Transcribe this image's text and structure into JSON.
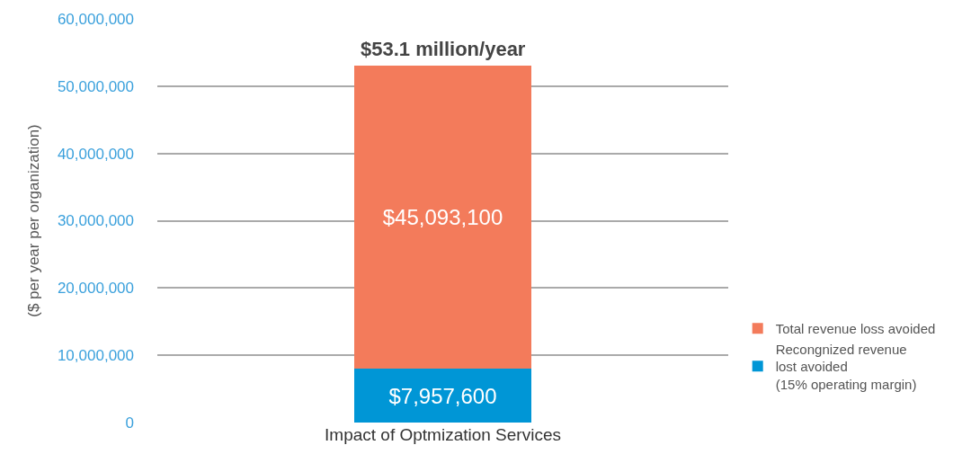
{
  "chart_data": {
    "type": "bar",
    "ylabel": "($ per year per organization)",
    "categories": [
      "Impact of Optmization Services"
    ],
    "stacked": true,
    "series": [
      {
        "name": "Recongnized revenue\nlost avoided\n(15% operating margin)",
        "color": "#0096d6",
        "values": [
          7957600
        ],
        "value_labels": [
          "$7,957,600"
        ]
      },
      {
        "name": "Total revenue loss avoided",
        "color": "#f37b5b",
        "values": [
          45093100
        ],
        "value_labels": [
          "$45,093,100"
        ]
      }
    ],
    "totals": [
      "$53.1 million/year"
    ],
    "ylim": [
      0,
      60000000
    ],
    "yticks": [
      0,
      {
        "value": 10000000,
        "label": "10,000,000"
      },
      {
        "value": 20000000,
        "label": "20,000,000"
      },
      {
        "value": 30000000,
        "label": "30,000,000"
      },
      {
        "value": 40000000,
        "label": "40,000,000"
      },
      {
        "value": 50000000,
        "label": "50,000,000"
      },
      {
        "value": 60000000,
        "label": "60,000,000"
      }
    ],
    "grid": "y",
    "legend": "right"
  }
}
